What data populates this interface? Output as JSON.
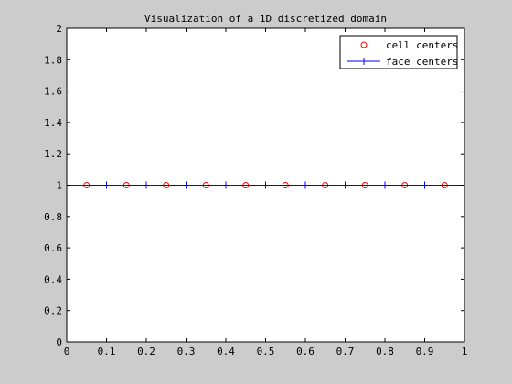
{
  "chart_data": {
    "type": "line",
    "title": "Visualization of a 1D discretized domain",
    "xlabel": "",
    "ylabel": "",
    "xlim": [
      0,
      1
    ],
    "ylim": [
      0,
      2
    ],
    "x_ticks": [
      "0",
      "0.1",
      "0.2",
      "0.3",
      "0.4",
      "0.5",
      "0.6",
      "0.7",
      "0.8",
      "0.9",
      "1"
    ],
    "y_ticks": [
      "0",
      "0.2",
      "0.4",
      "0.6",
      "0.8",
      "1",
      "1.2",
      "1.4",
      "1.6",
      "1.8",
      "2"
    ],
    "grid": false,
    "legend_position": "top-right",
    "series": [
      {
        "name": "cell centers",
        "style": "markers",
        "marker": "circle",
        "color": "#ff0000",
        "x": [
          0.05,
          0.15,
          0.25,
          0.35,
          0.45,
          0.55,
          0.65,
          0.75,
          0.85,
          0.95
        ],
        "y": [
          1,
          1,
          1,
          1,
          1,
          1,
          1,
          1,
          1,
          1
        ]
      },
      {
        "name": "face centers",
        "style": "line-markers",
        "marker": "plus",
        "color": "#0000ff",
        "x": [
          0,
          0.1,
          0.2,
          0.3,
          0.4,
          0.5,
          0.6,
          0.7,
          0.8,
          0.9,
          1.0
        ],
        "y": [
          1,
          1,
          1,
          1,
          1,
          1,
          1,
          1,
          1,
          1,
          1
        ]
      }
    ]
  }
}
